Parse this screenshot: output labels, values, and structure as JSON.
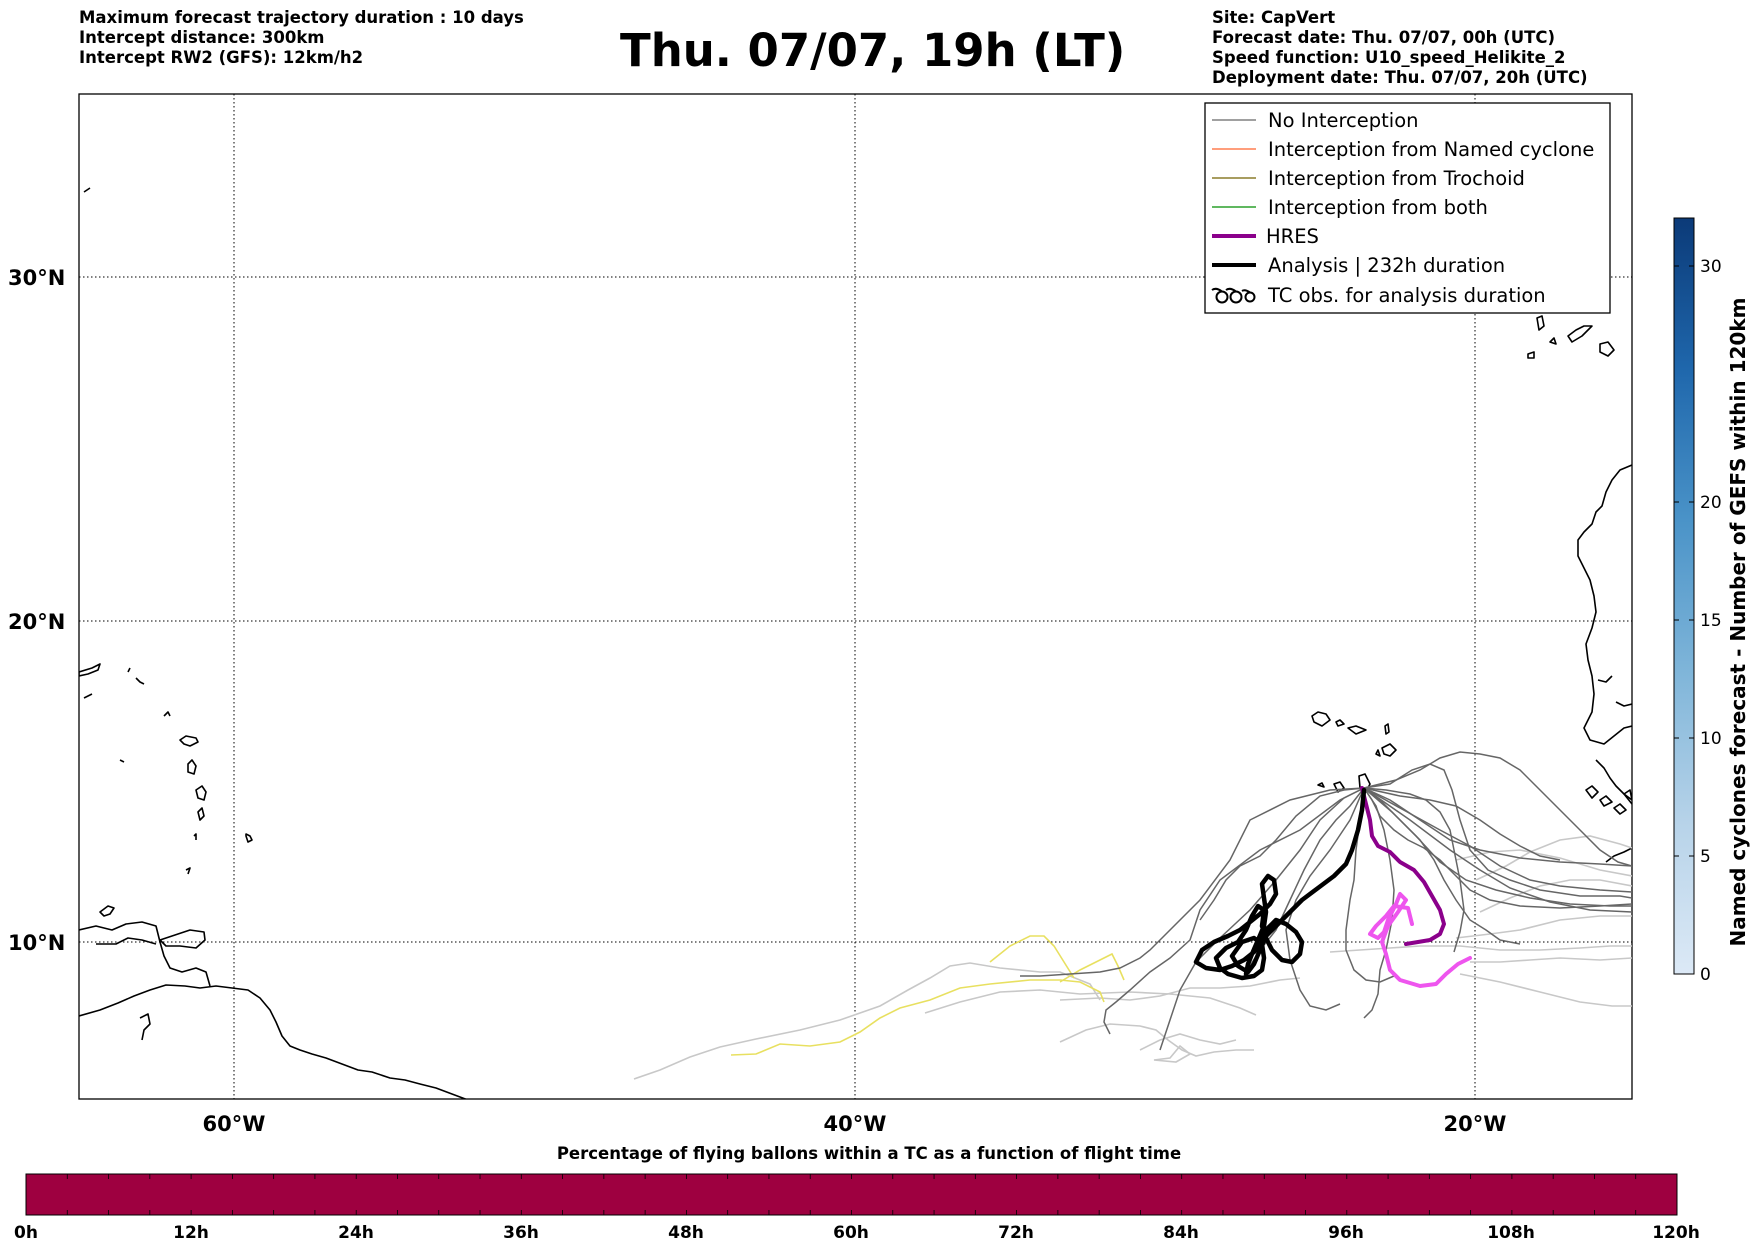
{
  "header": {
    "left": [
      "Maximum forecast trajectory duration : 10 days",
      "Intercept distance: 300km",
      "Intercept RW2 (GFS):  12km/h2"
    ],
    "title": "Thu. 07/07, 19h (LT)",
    "right": [
      "Site: CapVert",
      "Forecast date: Thu. 07/07, 00h (UTC)",
      "Speed function: U10_speed_Helikite_2",
      "Deployment date: Thu. 07/07, 20h (UTC)"
    ]
  },
  "map": {
    "lat_ticks": [
      "30°N",
      "20°N",
      "10°N"
    ],
    "lon_ticks": [
      "60°W",
      "40°W",
      "20°W"
    ]
  },
  "legend": {
    "items": [
      {
        "label": "No Interception",
        "color": "#808080",
        "style": "thin"
      },
      {
        "label": "Interception from Named cyclone",
        "color": "#ff7f50",
        "style": "thin"
      },
      {
        "label": "Interception from Trochoid",
        "color": "#8b7d2b",
        "style": "thin"
      },
      {
        "label": "Interception from both",
        "color": "#2ca02c",
        "style": "thin"
      },
      {
        "label": "HRES",
        "color": "#8b008b",
        "style": "thick"
      },
      {
        "label": "Analysis | 232h duration",
        "color": "#000000",
        "style": "thick"
      },
      {
        "label": "TC obs. for analysis duration",
        "color": "#000000",
        "style": "tc-symbol"
      }
    ]
  },
  "colorbar_right": {
    "label": "Named cyclones forecast - Number of GEFS within 120km",
    "ticks": [
      "0",
      "5",
      "10",
      "15",
      "20",
      "30"
    ]
  },
  "colorbar_bottom": {
    "title": "Percentage of flying ballons within a TC as a function of flight time",
    "ticks": [
      "0h",
      "12h",
      "24h",
      "36h",
      "48h",
      "60h",
      "72h",
      "84h",
      "96h",
      "108h",
      "120h"
    ],
    "fill_color": "#9e0040"
  },
  "colors": {
    "hres": "#8b008b",
    "analysis": "#000000",
    "no_interception": "#666666",
    "light_ensemble": "#c8c8c8",
    "yellow_track": "#e8e060",
    "pink_track": "#ee55ee"
  }
}
